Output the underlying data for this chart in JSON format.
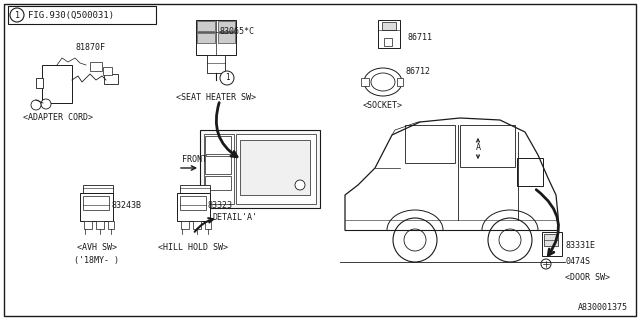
{
  "background_color": "#ffffff",
  "line_color": "#1a1a1a",
  "footer": "A830001375",
  "fig_title": "FIG.930(Q500031)",
  "label_81870F": "81870F",
  "label_adapter": "<ADAPTER CORD>",
  "label_83065": "83065*C",
  "label_seat": "<SEAT HEATER SW>",
  "label_86711": "86711",
  "label_86712": "86712",
  "label_socket": "<SOCKET>",
  "label_83243B": "83243B",
  "label_avh1": "<AVH SW>",
  "label_avh2": "('18MY- )",
  "label_83323": "83323",
  "label_hill": "<HILL HOLD SW>",
  "label_detail": "DETAIL'A'",
  "label_front": "FRONT",
  "label_83331E": "83331E",
  "label_0474S": "0474S",
  "label_door": "<DOOR SW>"
}
